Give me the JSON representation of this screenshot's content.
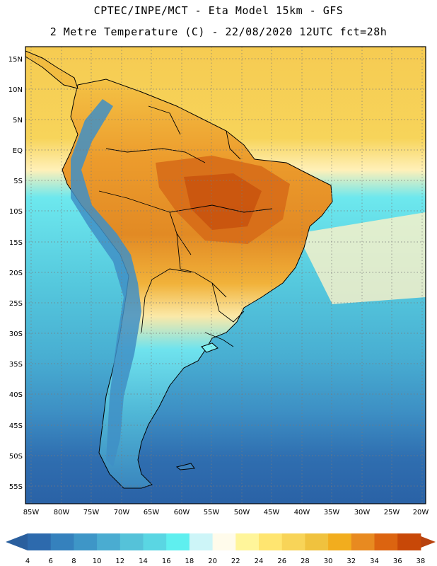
{
  "header": {
    "title_line1": "CPTEC/INPE/MCT -  Eta Model 15km - GFS",
    "title_line2": "2 Metre Temperature (C) - 22/08/2020 12UTC fct=28h"
  },
  "map": {
    "lat_labels": [
      "15N",
      "10N",
      "5N",
      "EQ",
      "5S",
      "10S",
      "15S",
      "20S",
      "25S",
      "30S",
      "35S",
      "40S",
      "45S",
      "50S",
      "55S"
    ],
    "lon_labels": [
      "85W",
      "80W",
      "75W",
      "70W",
      "65W",
      "60W",
      "55W",
      "50W",
      "45W",
      "40W",
      "35W",
      "30W",
      "25W",
      "20W"
    ]
  },
  "colorbar": {
    "labels": [
      "4",
      "6",
      "8",
      "10",
      "12",
      "14",
      "16",
      "18",
      "20",
      "22",
      "24",
      "26",
      "28",
      "30",
      "32",
      "34",
      "36",
      "38"
    ],
    "colors": [
      "#2d6aad",
      "#3581bd",
      "#3e96c7",
      "#4aacd1",
      "#55c2d9",
      "#5ad6e3",
      "#5fefef",
      "#cdf5f8",
      "#fffbeb",
      "#fff59a",
      "#ffe570",
      "#f8d458",
      "#f0c23e",
      "#f2ad1e",
      "#e88a20",
      "#dc6410",
      "#c84808"
    ],
    "low_color": "#2a5f9e",
    "high_color": "#b8430f"
  }
}
